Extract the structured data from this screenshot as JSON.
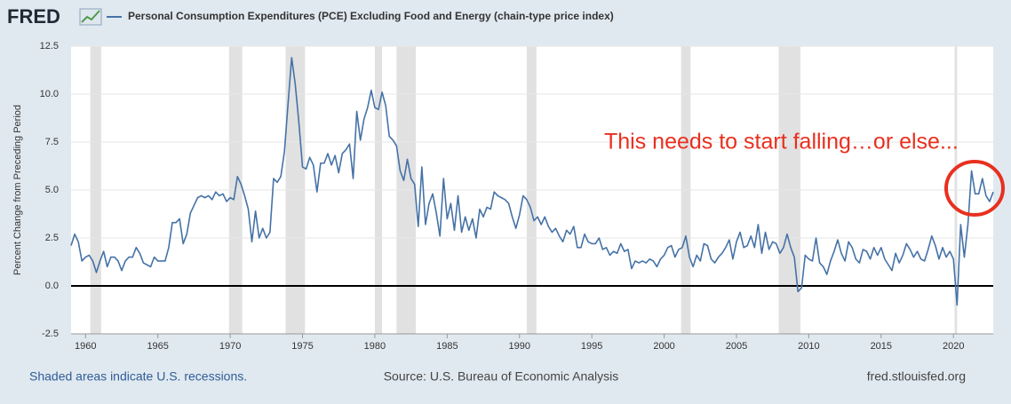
{
  "chart_data": {
    "type": "line",
    "logo": "FRED",
    "title": "Personal Consumption Expenditures (PCE) Excluding Food and Energy (chain-type price index)",
    "y_label": "Percent Change from Preceding Period",
    "annotation": "This needs to start falling…or else...",
    "footer_left": "Shaded areas indicate U.S. recessions.",
    "footer_center": "Source: U.S. Bureau of Economic Analysis",
    "footer_right": "fred.stlouisfed.org",
    "xlim": [
      1959,
      2022.75
    ],
    "ylim": [
      -2.5,
      12.5
    ],
    "xticks": [
      1960,
      1965,
      1970,
      1975,
      1980,
      1985,
      1990,
      1995,
      2000,
      2005,
      2010,
      2015,
      2020
    ],
    "yticks": [
      {
        "value": 12.5,
        "label": "12.5"
      },
      {
        "value": 10,
        "label": "10.0"
      },
      {
        "value": 7.5,
        "label": "7.5"
      },
      {
        "value": 5,
        "label": "5.0"
      },
      {
        "value": 2.5,
        "label": "2.5"
      },
      {
        "value": 0,
        "label": "0.0"
      },
      {
        "value": -2.5,
        "label": "-2.5"
      }
    ],
    "grid": true,
    "recessions": [
      [
        1960.33,
        1961.08
      ],
      [
        1969.92,
        1970.83
      ],
      [
        1973.83,
        1975.17
      ],
      [
        1980.0,
        1980.5
      ],
      [
        1981.5,
        1982.83
      ],
      [
        1990.5,
        1991.17
      ],
      [
        2001.17,
        2001.83
      ],
      [
        2007.92,
        2009.42
      ],
      [
        2020.08,
        2020.25
      ]
    ],
    "x": [
      1959,
      1959.25,
      1959.5,
      1959.75,
      1960,
      1960.25,
      1960.5,
      1960.75,
      1961,
      1961.25,
      1961.5,
      1961.75,
      1962,
      1962.25,
      1962.5,
      1962.75,
      1963,
      1963.25,
      1963.5,
      1963.75,
      1964,
      1964.25,
      1964.5,
      1964.75,
      1965,
      1965.25,
      1965.5,
      1965.75,
      1966,
      1966.25,
      1966.5,
      1966.75,
      1967,
      1967.25,
      1967.5,
      1967.75,
      1968,
      1968.25,
      1968.5,
      1968.75,
      1969,
      1969.25,
      1969.5,
      1969.75,
      1970,
      1970.25,
      1970.5,
      1970.75,
      1971,
      1971.25,
      1971.5,
      1971.75,
      1972,
      1972.25,
      1972.5,
      1972.75,
      1973,
      1973.25,
      1973.5,
      1973.75,
      1974,
      1974.25,
      1974.5,
      1974.75,
      1975,
      1975.25,
      1975.5,
      1975.75,
      1976,
      1976.25,
      1976.5,
      1976.75,
      1977,
      1977.25,
      1977.5,
      1977.75,
      1978,
      1978.25,
      1978.5,
      1978.75,
      1979,
      1979.25,
      1979.5,
      1979.75,
      1980,
      1980.25,
      1980.5,
      1980.75,
      1981,
      1981.25,
      1981.5,
      1981.75,
      1982,
      1982.25,
      1982.5,
      1982.75,
      1983,
      1983.25,
      1983.5,
      1983.75,
      1984,
      1984.25,
      1984.5,
      1984.75,
      1985,
      1985.25,
      1985.5,
      1985.75,
      1986,
      1986.25,
      1986.5,
      1986.75,
      1987,
      1987.25,
      1987.5,
      1987.75,
      1988,
      1988.25,
      1988.5,
      1988.75,
      1989,
      1989.25,
      1989.5,
      1989.75,
      1990,
      1990.25,
      1990.5,
      1990.75,
      1991,
      1991.25,
      1991.5,
      1991.75,
      1992,
      1992.25,
      1992.5,
      1992.75,
      1993,
      1993.25,
      1993.5,
      1993.75,
      1994,
      1994.25,
      1994.5,
      1994.75,
      1995,
      1995.25,
      1995.5,
      1995.75,
      1996,
      1996.25,
      1996.5,
      1996.75,
      1997,
      1997.25,
      1997.5,
      1997.75,
      1998,
      1998.25,
      1998.5,
      1998.75,
      1999,
      1999.25,
      1999.5,
      1999.75,
      2000,
      2000.25,
      2000.5,
      2000.75,
      2001,
      2001.25,
      2001.5,
      2001.75,
      2002,
      2002.25,
      2002.5,
      2002.75,
      2003,
      2003.25,
      2003.5,
      2003.75,
      2004,
      2004.25,
      2004.5,
      2004.75,
      2005,
      2005.25,
      2005.5,
      2005.75,
      2006,
      2006.25,
      2006.5,
      2006.75,
      2007,
      2007.25,
      2007.5,
      2007.75,
      2008,
      2008.25,
      2008.5,
      2008.75,
      2009,
      2009.25,
      2009.5,
      2009.75,
      2010,
      2010.25,
      2010.5,
      2010.75,
      2011,
      2011.25,
      2011.5,
      2011.75,
      2012,
      2012.25,
      2012.5,
      2012.75,
      2013,
      2013.25,
      2013.5,
      2013.75,
      2014,
      2014.25,
      2014.5,
      2014.75,
      2015,
      2015.25,
      2015.5,
      2015.75,
      2016,
      2016.25,
      2016.5,
      2016.75,
      2017,
      2017.25,
      2017.5,
      2017.75,
      2018,
      2018.25,
      2018.5,
      2018.75,
      2019,
      2019.25,
      2019.5,
      2019.75,
      2020,
      2020.25,
      2020.5,
      2020.75,
      2021,
      2021.25,
      2021.5,
      2021.75,
      2022,
      2022.25,
      2022.5,
      2022.75
    ],
    "series": [
      {
        "name": "Personal Consumption Expenditures (PCE) Excluding Food and Energy (chain-type price index)",
        "color": "#4572a7",
        "values": [
          2.1,
          2.7,
          2.3,
          1.3,
          1.5,
          1.6,
          1.3,
          0.7,
          1.3,
          1.8,
          1.0,
          1.5,
          1.5,
          1.3,
          0.8,
          1.3,
          1.5,
          1.5,
          2.0,
          1.7,
          1.2,
          1.1,
          1.0,
          1.5,
          1.3,
          1.3,
          1.3,
          2.0,
          3.3,
          3.3,
          3.5,
          2.2,
          2.7,
          3.8,
          4.2,
          4.6,
          4.7,
          4.6,
          4.7,
          4.5,
          4.9,
          4.7,
          4.8,
          4.4,
          4.6,
          4.5,
          5.7,
          5.3,
          4.7,
          4.0,
          2.3,
          3.9,
          2.5,
          3.0,
          2.5,
          2.8,
          5.6,
          5.4,
          5.7,
          7.0,
          9.5,
          11.9,
          10.5,
          8.5,
          6.2,
          6.1,
          6.7,
          6.3,
          4.9,
          6.4,
          6.4,
          6.9,
          6.3,
          6.8,
          5.9,
          6.9,
          7.1,
          7.4,
          5.6,
          9.1,
          7.6,
          8.7,
          9.3,
          10.2,
          9.3,
          9.2,
          10.1,
          9.4,
          7.8,
          7.6,
          7.3,
          6.0,
          5.5,
          6.6,
          5.6,
          5.3,
          3.1,
          6.2,
          3.2,
          4.3,
          4.8,
          3.8,
          2.6,
          5.6,
          3.5,
          4.3,
          2.9,
          4.7,
          2.8,
          3.6,
          2.9,
          3.5,
          2.5,
          4.0,
          3.6,
          4.1,
          4.0,
          4.9,
          4.7,
          4.6,
          4.5,
          4.3,
          3.6,
          3.0,
          3.7,
          4.7,
          4.5,
          4.1,
          3.4,
          3.6,
          3.2,
          3.6,
          3.1,
          2.8,
          3.0,
          2.6,
          2.3,
          2.9,
          2.7,
          3.1,
          2.0,
          2.0,
          2.7,
          2.3,
          2.2,
          2.2,
          2.5,
          1.9,
          2.0,
          1.6,
          1.8,
          1.7,
          2.2,
          1.8,
          1.9,
          0.9,
          1.3,
          1.2,
          1.3,
          1.2,
          1.4,
          1.3,
          1.0,
          1.4,
          1.6,
          2.0,
          2.1,
          1.5,
          1.9,
          2.0,
          2.6,
          1.5,
          1.0,
          1.6,
          1.3,
          2.2,
          2.1,
          1.4,
          1.2,
          1.5,
          1.7,
          2.0,
          2.4,
          1.4,
          2.3,
          2.8,
          2.0,
          2.1,
          2.6,
          2.0,
          3.2,
          1.7,
          2.8,
          1.9,
          2.3,
          2.2,
          1.7,
          2.0,
          2.7,
          2.0,
          1.5,
          -0.3,
          -0.1,
          1.6,
          1.4,
          1.3,
          2.5,
          1.2,
          1.0,
          0.6,
          1.3,
          1.8,
          2.4,
          1.7,
          1.3,
          2.3,
          2.0,
          1.4,
          1.2,
          1.9,
          1.8,
          1.4,
          2.0,
          1.6,
          2.0,
          1.4,
          1.1,
          0.8,
          1.7,
          1.2,
          1.6,
          2.2,
          1.9,
          1.5,
          1.8,
          1.4,
          1.3,
          1.9,
          2.6,
          2.1,
          1.4,
          2.0,
          1.5,
          1.8,
          1.4,
          -1.0,
          3.2,
          1.5,
          3.2,
          6.0,
          4.8,
          4.8,
          5.6,
          4.7,
          4.4,
          4.9
        ]
      }
    ]
  }
}
